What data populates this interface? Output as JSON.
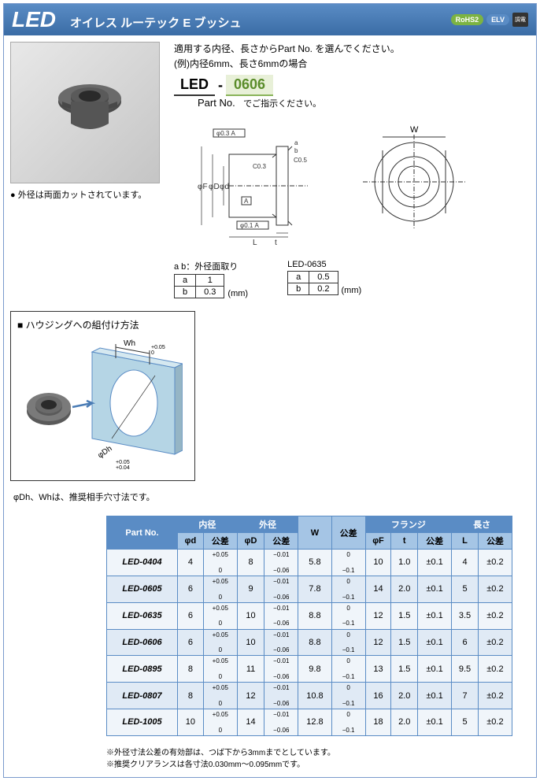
{
  "header": {
    "title": "LED",
    "subtitle": "オイレス ルーテック E ブッシュ",
    "badges": {
      "rohs": "RoHS2",
      "elv": "ELV",
      "icon": "調電"
    }
  },
  "spec_intro": {
    "line1": "適用する内径、長さからPart No. を選んでください。",
    "line2": "(例)内径6mm、長さ6mmの場合"
  },
  "partno": {
    "prefix": "LED",
    "dash": "-",
    "code": "0606",
    "label": "Part No.",
    "hint": "でご指示ください。"
  },
  "photo_note": "● 外径は両面カットされています。",
  "ab_common": {
    "caption": "a b：外径面取り",
    "rows": [
      [
        "a",
        "1"
      ],
      [
        "b",
        "0.3"
      ]
    ],
    "unit": "(mm)"
  },
  "ab_0635": {
    "caption": "LED-0635",
    "rows": [
      [
        "a",
        "0.5"
      ],
      [
        "b",
        "0.2"
      ]
    ],
    "unit": "(mm)"
  },
  "mounting": {
    "title": "■ ハウジングへの組付け方法",
    "note": "φDh、Whは、推奨相手穴寸法です。",
    "wh_label": "Wh",
    "wh_tol": "+0.05\n 0",
    "dh_label": "φDh",
    "dh_tol": "+0.05\n+0.04"
  },
  "diag_labels": {
    "phiF": "φF",
    "phiD": "φD",
    "phid": "φd",
    "t": "t",
    "L": "L",
    "W": "W",
    "c03": "C0.3",
    "c05": "C0.5",
    "a": "a",
    "b": "b",
    "tol03": "φ0.3 A",
    "tol01": "φ0.1 A",
    "datum": "A"
  },
  "table": {
    "headers": {
      "partno": "Part No.",
      "inner": "内径",
      "outer": "外径",
      "phid": "φd",
      "tol": "公差",
      "phiD": "φD",
      "W": "W",
      "flange": "フランジ",
      "length": "長さ",
      "phiF": "φF",
      "t": "t",
      "L": "L"
    },
    "tol_phid": "+0.05\n0",
    "tol_phiD": "−0.01\n−0.06",
    "tol_W": "0\n−0.1",
    "tol_flange": "±0.1",
    "tol_L": "±0.2",
    "rows": [
      {
        "pn": "LED-0404",
        "phid": "4",
        "phiD": "8",
        "W": "5.8",
        "phiF": "10",
        "t": "1.0",
        "L": "4"
      },
      {
        "pn": "LED-0605",
        "phid": "6",
        "phiD": "9",
        "W": "7.8",
        "phiF": "14",
        "t": "2.0",
        "L": "5"
      },
      {
        "pn": "LED-0635",
        "phid": "6",
        "phiD": "10",
        "W": "8.8",
        "phiF": "12",
        "t": "1.5",
        "L": "3.5"
      },
      {
        "pn": "LED-0606",
        "phid": "6",
        "phiD": "10",
        "W": "8.8",
        "phiF": "12",
        "t": "1.5",
        "L": "6"
      },
      {
        "pn": "LED-0895",
        "phid": "8",
        "phiD": "11",
        "W": "9.8",
        "phiF": "13",
        "t": "1.5",
        "L": "9.5"
      },
      {
        "pn": "LED-0807",
        "phid": "8",
        "phiD": "12",
        "W": "10.8",
        "phiF": "16",
        "t": "2.0",
        "L": "7"
      },
      {
        "pn": "LED-1005",
        "phid": "10",
        "phiD": "14",
        "W": "12.8",
        "phiF": "18",
        "t": "2.0",
        "L": "5"
      }
    ],
    "notes": [
      "※外径寸法公差の有効部は、つば下から3mmまでとしています。",
      "※推奨クリアランスは各寸法0.030mm〜0.095mmです。"
    ]
  },
  "colors": {
    "header_bg": "#4a7cb5",
    "table_border": "#5a8cc5",
    "table_head_bg": "#a5c5e5",
    "table_group_bg": "#5a8cc5",
    "row_odd": "#f0f5fa",
    "row_even": "#e0eaf5"
  }
}
